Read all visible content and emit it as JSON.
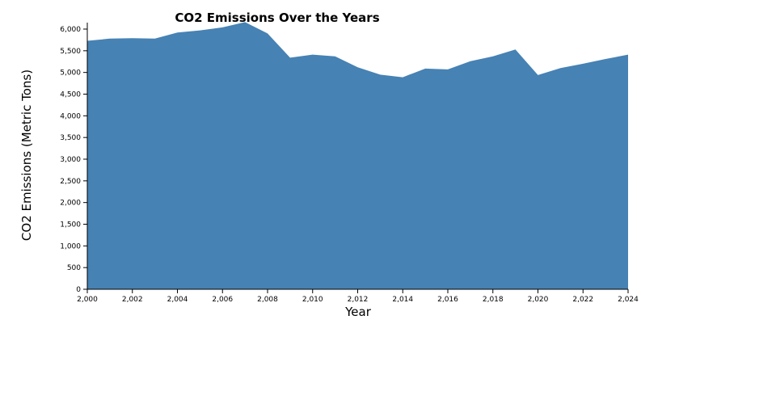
{
  "chart_data": {
    "type": "area",
    "title": "CO2 Emissions Over the Years",
    "xlabel": "Year",
    "ylabel": "CO2 Emissions (Metric Tons)",
    "x": [
      2000,
      2001,
      2002,
      2003,
      2004,
      2005,
      2006,
      2007,
      2008,
      2009,
      2010,
      2011,
      2012,
      2013,
      2014,
      2015,
      2016,
      2017,
      2018,
      2019,
      2020,
      2021,
      2022,
      2023,
      2024
    ],
    "series": [
      {
        "values": [
          5730,
          5780,
          5790,
          5780,
          5920,
          5970,
          6040,
          6160,
          5900,
          5340,
          5410,
          5370,
          5120,
          4950,
          4890,
          5090,
          5070,
          5260,
          5370,
          5530,
          4940,
          5100,
          5200,
          5310,
          5410
        ]
      }
    ],
    "xlim": [
      2000,
      2024
    ],
    "ylim": [
      0,
      6200
    ],
    "x_ticks": [
      2000,
      2002,
      2004,
      2006,
      2008,
      2010,
      2012,
      2014,
      2016,
      2018,
      2020,
      2022,
      2024
    ],
    "x_tick_labels": [
      "2,000",
      "2,002",
      "2,004",
      "2,006",
      "2,008",
      "2,010",
      "2,012",
      "2,014",
      "2,016",
      "2,018",
      "2,020",
      "2,022",
      "2,024"
    ],
    "y_ticks": [
      0,
      500,
      1000,
      1500,
      2000,
      2500,
      3000,
      3500,
      4000,
      4500,
      5000,
      5500,
      6000
    ],
    "y_tick_labels": [
      "0",
      "500",
      "1,000",
      "1,500",
      "2,000",
      "2,500",
      "3,000",
      "3,500",
      "4,000",
      "4,500",
      "5,000",
      "5,500",
      "6,000"
    ],
    "grid": false,
    "legend": "none",
    "fill_color": "#4682b4"
  }
}
